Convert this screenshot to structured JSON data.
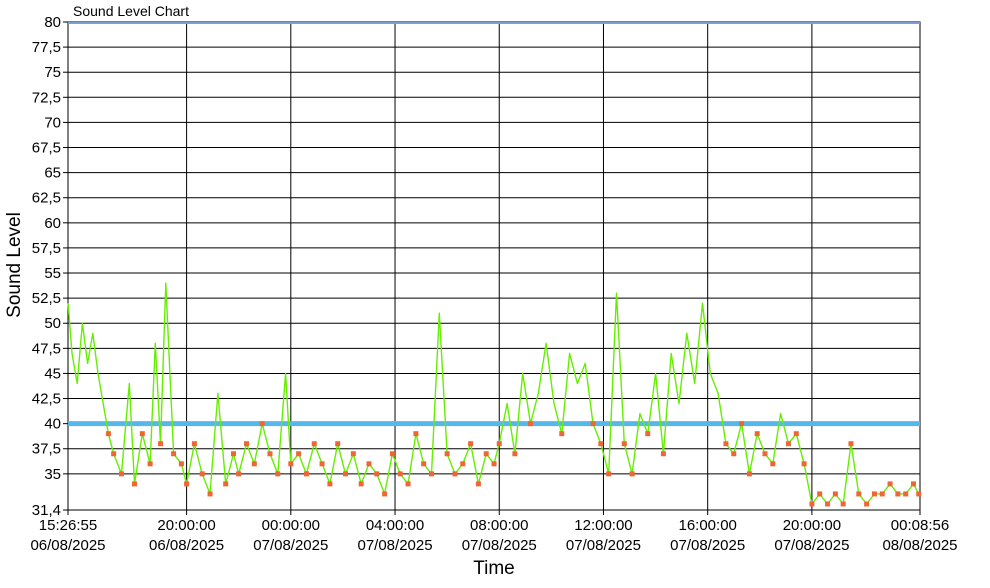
{
  "chart_data": {
    "type": "line",
    "title": "Sound Level Chart",
    "xlabel": "Time",
    "ylabel": "Sound Level",
    "ylim": [
      31.4,
      80
    ],
    "grid": true,
    "yticks": [
      "31,4",
      "35",
      "37,5",
      "40",
      "42,5",
      "45",
      "47,5",
      "50",
      "52,5",
      "55",
      "57,5",
      "60",
      "62,5",
      "65",
      "67,5",
      "70",
      "72,5",
      "75",
      "77,5",
      "80"
    ],
    "yticks_values": [
      31.4,
      35,
      37.5,
      40,
      42.5,
      45,
      47.5,
      50,
      52.5,
      55,
      57.5,
      60,
      62.5,
      65,
      67.5,
      70,
      72.5,
      75,
      77.5,
      80
    ],
    "x_range_hours": [
      15.448,
      48.149
    ],
    "xticks": [
      {
        "hour": 15.448,
        "time": "15:26:55",
        "date": "06/08/2025"
      },
      {
        "hour": 20,
        "time": "20:00:00",
        "date": "06/08/2025"
      },
      {
        "hour": 24,
        "time": "00:00:00",
        "date": "07/08/2025"
      },
      {
        "hour": 28,
        "time": "04:00:00",
        "date": "07/08/2025"
      },
      {
        "hour": 32,
        "time": "08:00:00",
        "date": "07/08/2025"
      },
      {
        "hour": 36,
        "time": "12:00:00",
        "date": "07/08/2025"
      },
      {
        "hour": 40,
        "time": "16:00:00",
        "date": "07/08/2025"
      },
      {
        "hour": 44,
        "time": "20:00:00",
        "date": "07/08/2025"
      },
      {
        "hour": 48.149,
        "time": "00:08:56",
        "date": "08/08/2025"
      }
    ],
    "threshold": {
      "value": 40,
      "color": "#56b8ea"
    },
    "series": [
      {
        "color": "#66ee00",
        "marker_color": "#ee6633",
        "x": [
          15.45,
          15.6,
          15.8,
          16.0,
          16.2,
          16.4,
          16.6,
          16.8,
          17.0,
          17.2,
          17.5,
          17.8,
          18.0,
          18.3,
          18.6,
          18.8,
          19.0,
          19.2,
          19.5,
          19.8,
          20.0,
          20.3,
          20.6,
          20.9,
          21.2,
          21.5,
          21.8,
          22.0,
          22.3,
          22.6,
          22.9,
          23.2,
          23.5,
          23.8,
          24.0,
          24.3,
          24.6,
          24.9,
          25.2,
          25.5,
          25.8,
          26.1,
          26.4,
          26.7,
          27.0,
          27.3,
          27.6,
          27.9,
          28.2,
          28.5,
          28.8,
          29.1,
          29.4,
          29.7,
          30.0,
          30.3,
          30.6,
          30.9,
          31.2,
          31.5,
          31.8,
          32.0,
          32.3,
          32.6,
          32.9,
          33.2,
          33.5,
          33.8,
          34.1,
          34.4,
          34.7,
          35.0,
          35.3,
          35.6,
          35.9,
          36.2,
          36.5,
          36.8,
          37.1,
          37.4,
          37.7,
          38.0,
          38.3,
          38.6,
          38.9,
          39.2,
          39.5,
          39.8,
          40.1,
          40.4,
          40.7,
          41.0,
          41.3,
          41.6,
          41.9,
          42.2,
          42.5,
          42.8,
          43.1,
          43.4,
          43.7,
          44.0,
          44.3,
          44.6,
          44.9,
          45.2,
          45.5,
          45.8,
          46.1,
          46.4,
          46.7,
          47.0,
          47.3,
          47.6,
          47.9,
          48.1
        ],
        "y": [
          52,
          47,
          44,
          50,
          46,
          49,
          45,
          42,
          39,
          37,
          35,
          44,
          34,
          39,
          36,
          48,
          38,
          54,
          37,
          36,
          34,
          38,
          35,
          33,
          43,
          34,
          37,
          35,
          38,
          36,
          40,
          37,
          35,
          45,
          36,
          37,
          35,
          38,
          36,
          34,
          38,
          35,
          37,
          34,
          36,
          35,
          33,
          37,
          35,
          34,
          39,
          36,
          35,
          51,
          37,
          35,
          36,
          38,
          34,
          37,
          36,
          38,
          42,
          37,
          45,
          40,
          43,
          48,
          42,
          39,
          47,
          44,
          46,
          40,
          38,
          35,
          53,
          38,
          35,
          41,
          39,
          45,
          37,
          47,
          42,
          49,
          44,
          52,
          45,
          43,
          38,
          37,
          40,
          35,
          39,
          37,
          36,
          41,
          38,
          39,
          36,
          32,
          33,
          32,
          33,
          32,
          38,
          33,
          32,
          33,
          33,
          34,
          33,
          33,
          34,
          33
        ]
      }
    ]
  }
}
